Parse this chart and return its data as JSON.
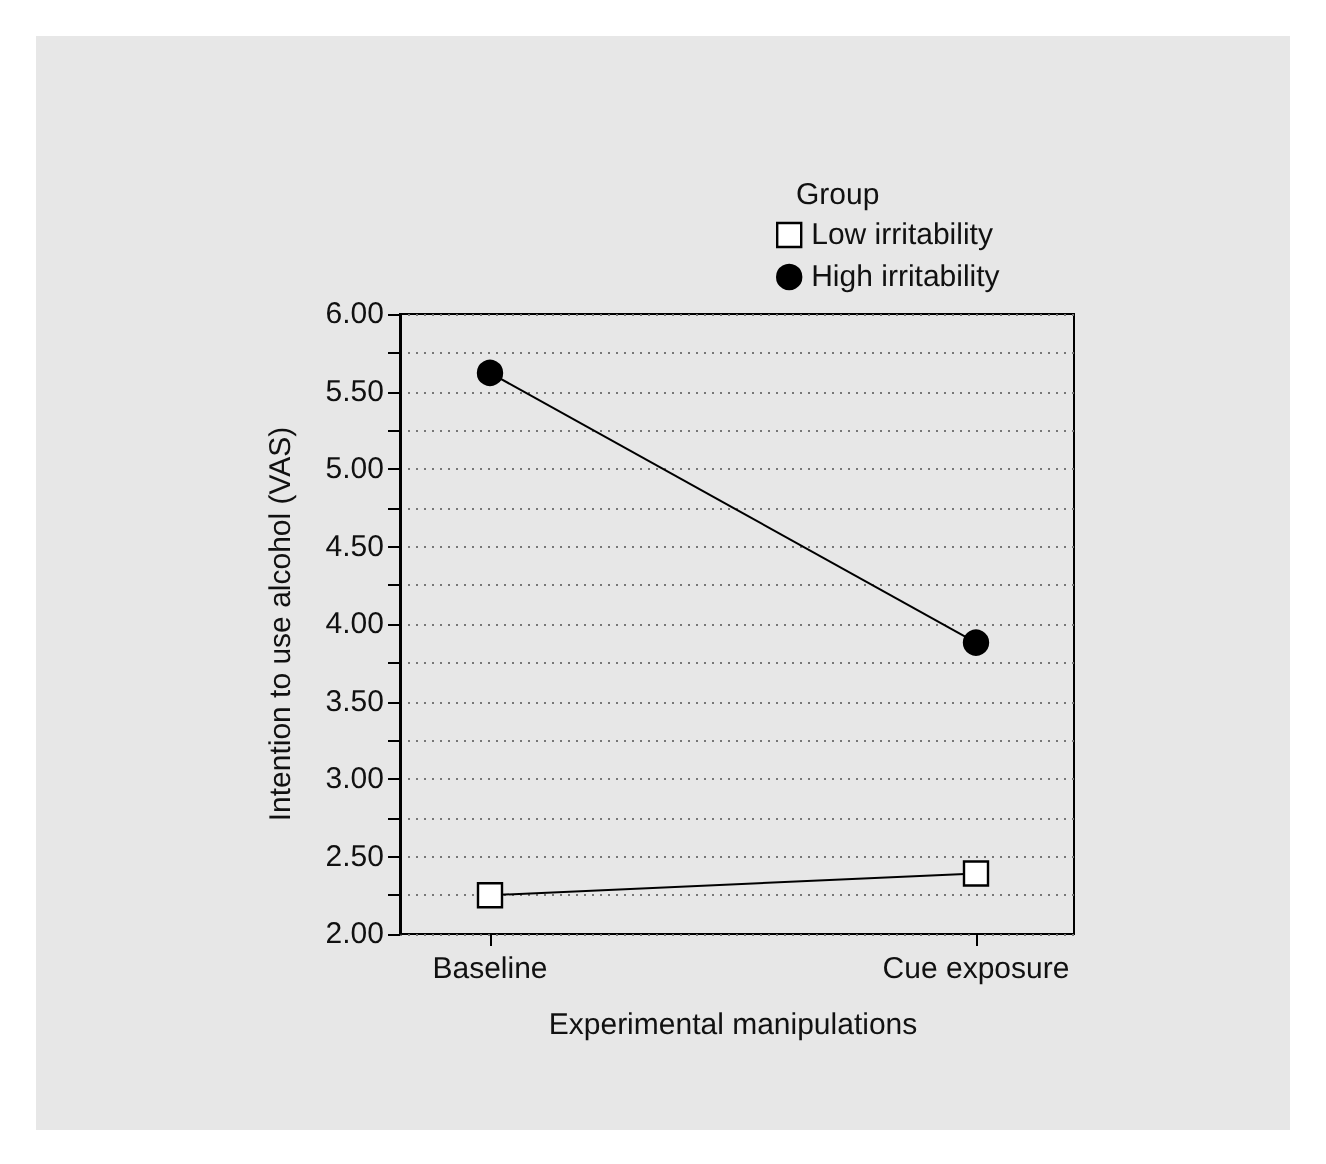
{
  "chart_data": {
    "type": "line",
    "xlabel": "Experimental manipulations",
    "ylabel": "Intention to use alcohol (VAS)",
    "legend_title": "Group",
    "categories": [
      "Baseline",
      "Cue exposure"
    ],
    "series": [
      {
        "name": "Low irritability",
        "color": "#ffffff",
        "marker": "square",
        "values": [
          2.25,
          2.39
        ]
      },
      {
        "name": "High irritability",
        "color": "#000000",
        "marker": "circle",
        "values": [
          5.62,
          3.88
        ]
      }
    ],
    "ylim": [
      2,
      6
    ],
    "yticks": [
      {
        "value": 2,
        "label": "2.00"
      },
      {
        "value": 2.25,
        "label": null
      },
      {
        "value": 2.5,
        "label": "2.50"
      },
      {
        "value": 2.75,
        "label": null
      },
      {
        "value": 3,
        "label": "3.00"
      },
      {
        "value": 3.25,
        "label": null
      },
      {
        "value": 3.5,
        "label": "3.50"
      },
      {
        "value": 3.75,
        "label": null
      },
      {
        "value": 4,
        "label": "4.00"
      },
      {
        "value": 4.25,
        "label": null
      },
      {
        "value": 4.5,
        "label": "4.50"
      },
      {
        "value": 4.75,
        "label": null
      },
      {
        "value": 5,
        "label": "5.00"
      },
      {
        "value": 5.25,
        "label": null
      },
      {
        "value": 5.5,
        "label": "5.50"
      },
      {
        "value": 5.75,
        "label": null
      },
      {
        "value": 6,
        "label": "6.00"
      }
    ],
    "grid": "y",
    "legend": "top right",
    "line_style": "solid"
  }
}
